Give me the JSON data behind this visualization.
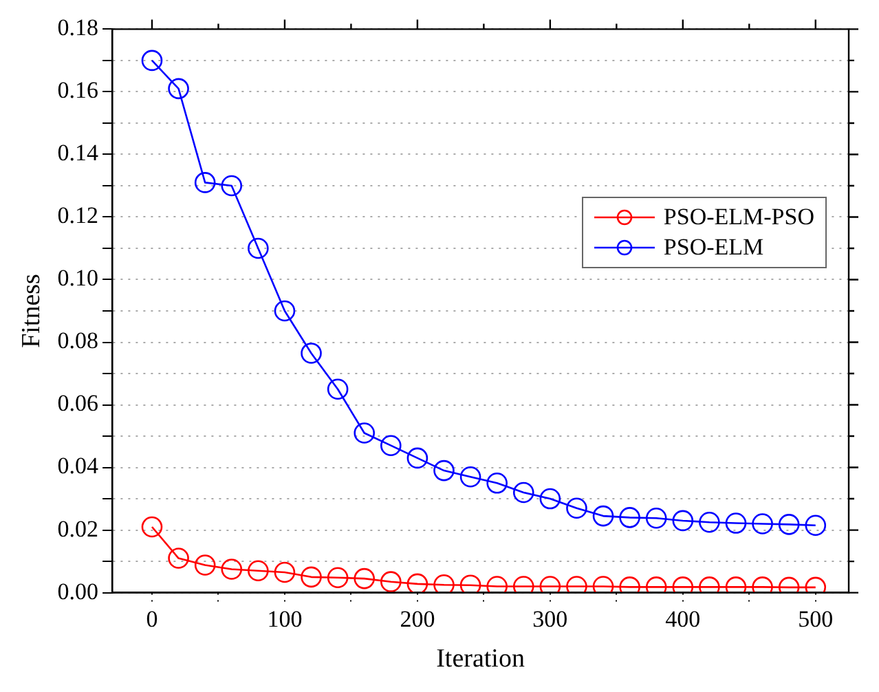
{
  "chart_data": {
    "type": "line",
    "xlabel": "Iteration",
    "ylabel": "Fitness",
    "x": [
      0,
      20,
      40,
      60,
      80,
      100,
      120,
      140,
      160,
      180,
      200,
      220,
      240,
      260,
      280,
      300,
      320,
      340,
      360,
      380,
      400,
      420,
      440,
      460,
      480,
      500
    ],
    "series": [
      {
        "name": "PSO-ELM-PSO",
        "color": "#ff0000",
        "values": [
          0.021,
          0.011,
          0.0088,
          0.0075,
          0.007,
          0.0065,
          0.005,
          0.0048,
          0.0045,
          0.0035,
          0.0028,
          0.0025,
          0.0024,
          0.002,
          0.002,
          0.002,
          0.002,
          0.002,
          0.0018,
          0.0018,
          0.0018,
          0.0018,
          0.0018,
          0.0018,
          0.0017,
          0.0017
        ]
      },
      {
        "name": "PSO-ELM",
        "color": "#0000ff",
        "values": [
          0.17,
          0.161,
          0.131,
          0.13,
          0.11,
          0.09,
          0.0765,
          0.065,
          0.051,
          0.047,
          0.043,
          0.039,
          0.037,
          0.035,
          0.032,
          0.03,
          0.027,
          0.0245,
          0.024,
          0.0238,
          0.023,
          0.0225,
          0.0222,
          0.022,
          0.0218,
          0.0215
        ]
      }
    ],
    "xlim": [
      -30,
      525
    ],
    "xticks": [
      0,
      {
        "value": 50,
        "label": null
      },
      100,
      {
        "value": 150,
        "label": null
      },
      200,
      {
        "value": 250,
        "label": null
      },
      300,
      {
        "value": 350,
        "label": null
      },
      400,
      {
        "value": 450,
        "label": null
      },
      500
    ],
    "ylim": [
      0,
      0.18
    ],
    "yticks": [
      "0.00",
      {
        "value": 0.01,
        "label": null
      },
      {
        "value": 0.02,
        "label": "0.02"
      },
      {
        "value": 0.03,
        "label": null
      },
      {
        "value": 0.04,
        "label": "0.04"
      },
      {
        "value": 0.05,
        "label": null
      },
      {
        "value": 0.06,
        "label": "0.06"
      },
      {
        "value": 0.07,
        "label": null
      },
      {
        "value": 0.08,
        "label": "0.08"
      },
      {
        "value": 0.09,
        "label": null
      },
      {
        "value": 0.1,
        "label": "0.10"
      },
      {
        "value": 0.11,
        "label": null
      },
      {
        "value": 0.12,
        "label": "0.12"
      },
      {
        "value": 0.13,
        "label": null
      },
      {
        "value": 0.14,
        "label": "0.14"
      },
      {
        "value": 0.15,
        "label": null
      },
      {
        "value": 0.16,
        "label": "0.16"
      },
      {
        "value": 0.17,
        "label": null
      },
      {
        "value": 0.18,
        "label": "0.18"
      }
    ],
    "grid": "y",
    "legend": "right",
    "marker": "circle",
    "line_style": "solid"
  }
}
